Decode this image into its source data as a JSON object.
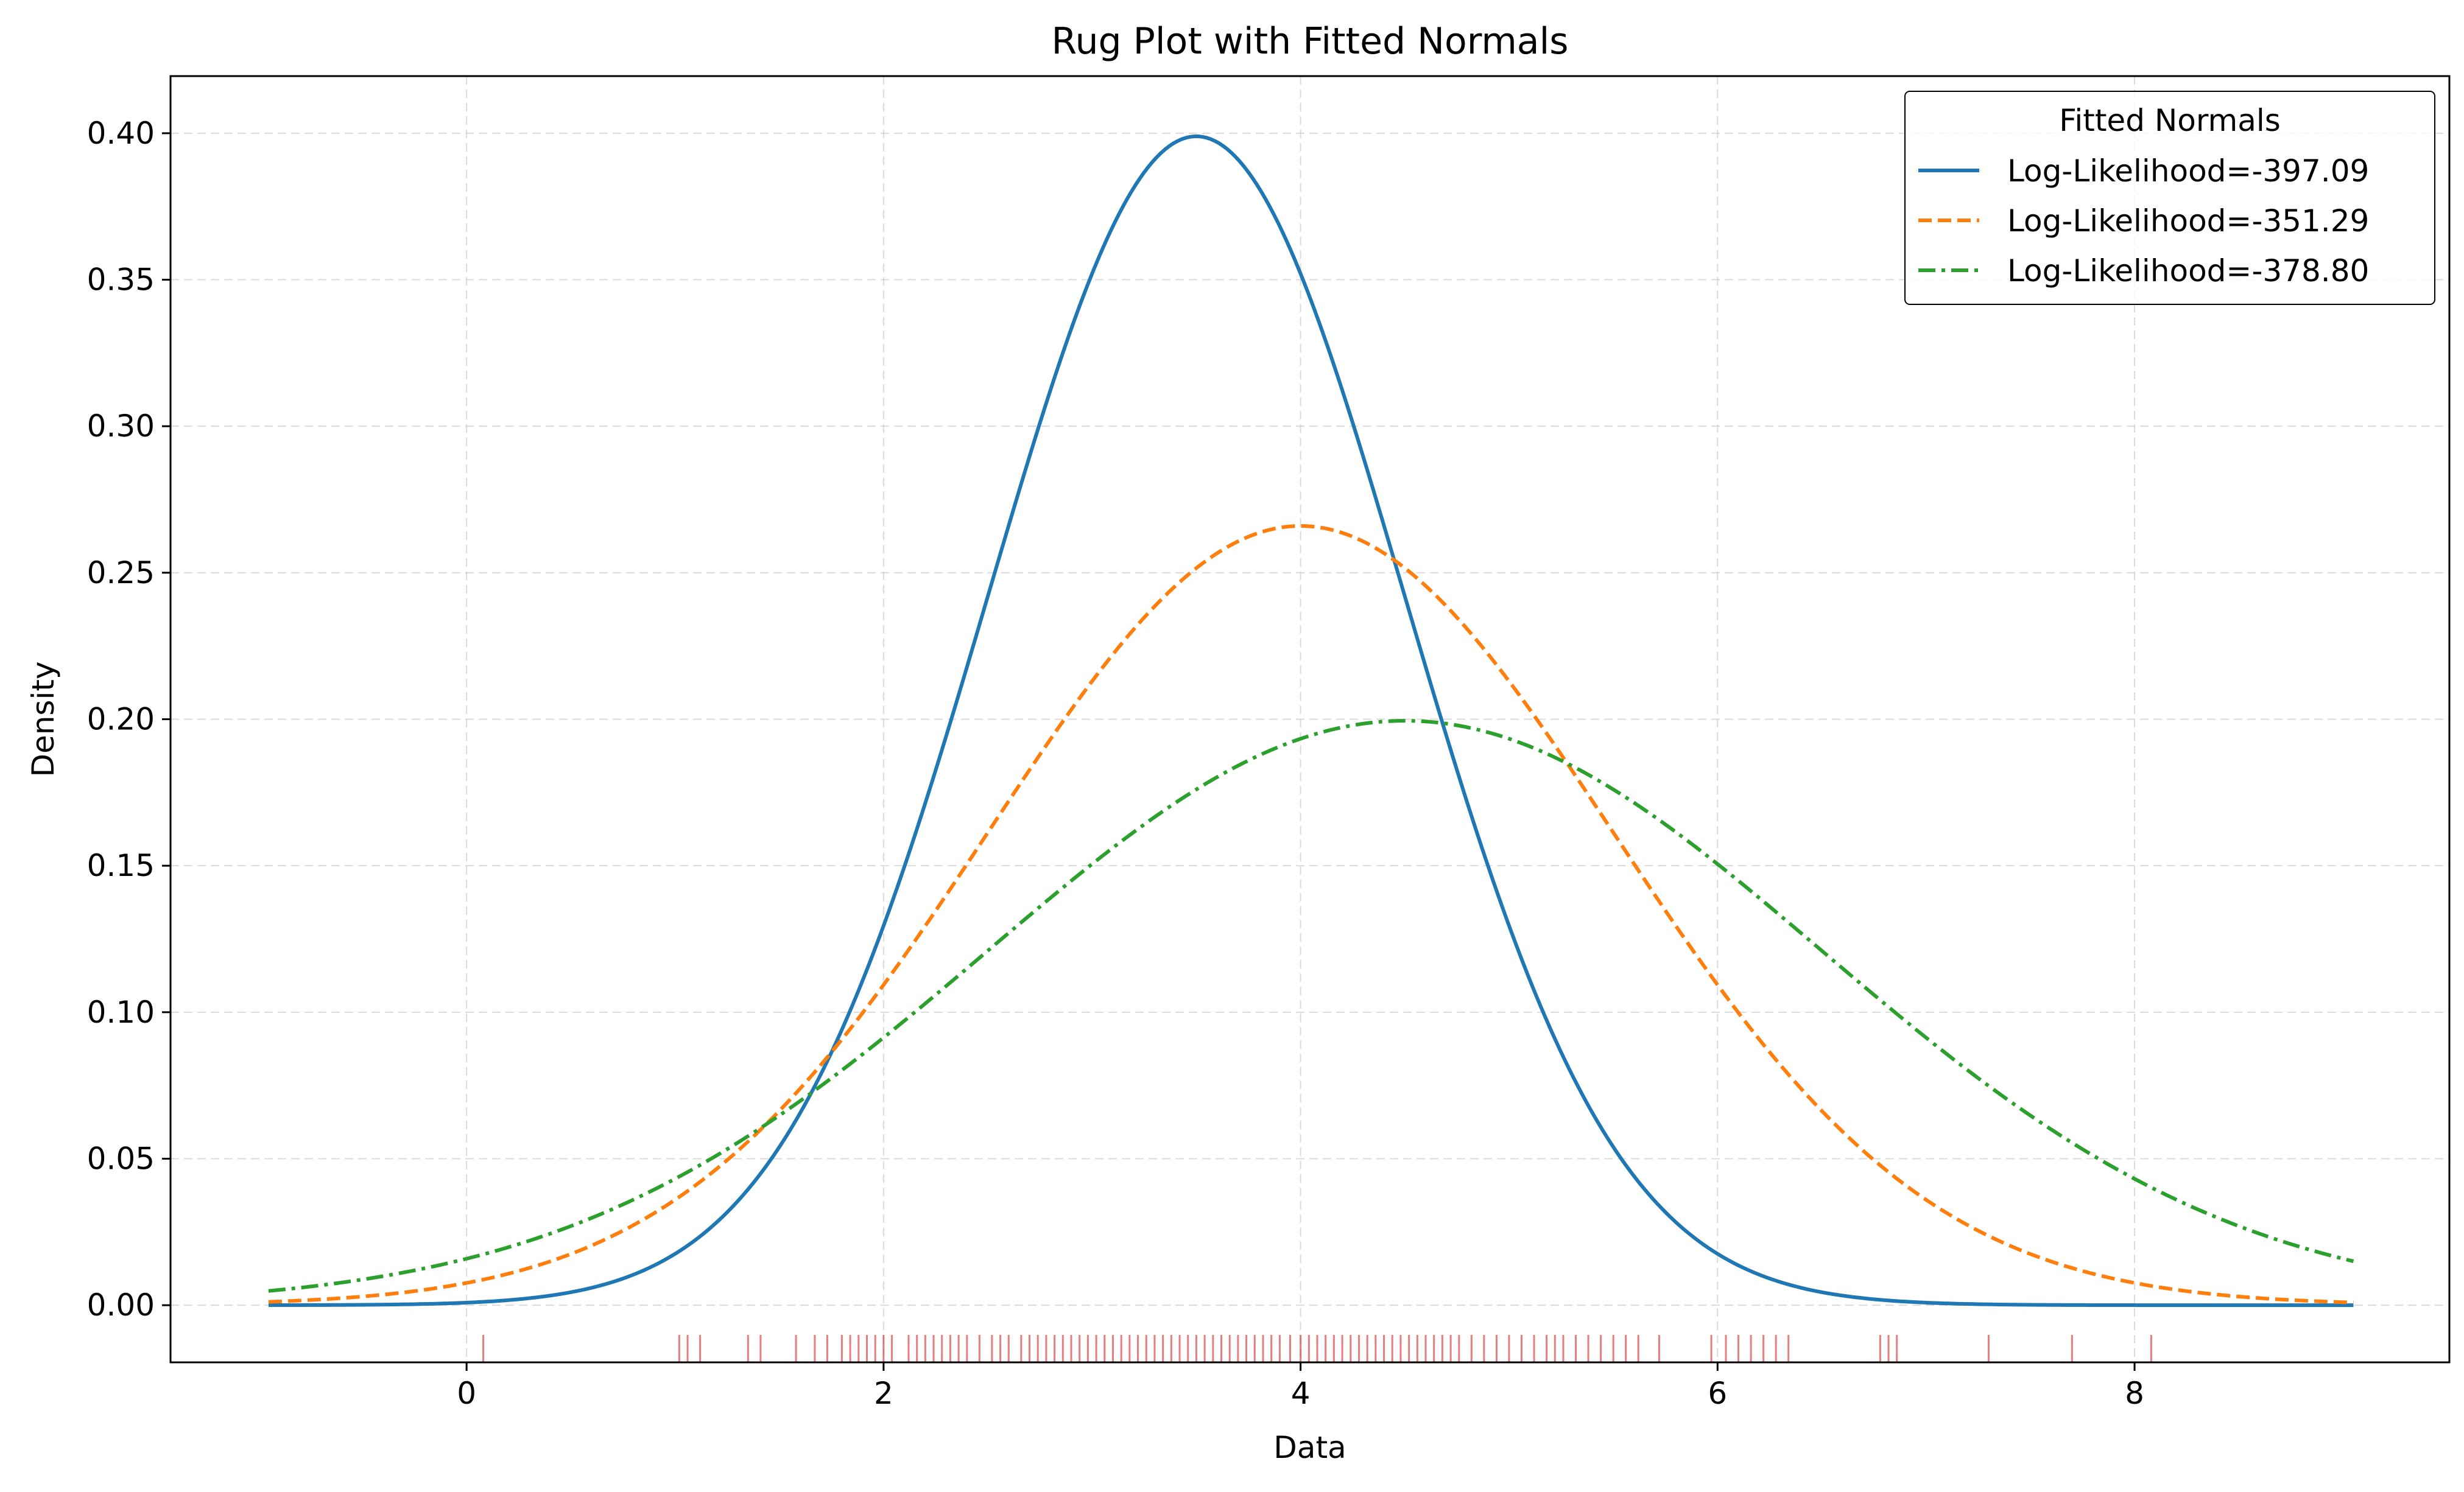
{
  "chart_data": {
    "type": "line",
    "title": "Rug Plot with Fitted Normals",
    "xlabel": "Data",
    "ylabel": "Density",
    "xlim": [
      -1.42,
      9.51
    ],
    "ylim": [
      -0.0195,
      0.4195
    ],
    "x_ticks": [
      0,
      2,
      4,
      6,
      8
    ],
    "y_ticks": [
      0.0,
      0.05,
      0.1,
      0.15,
      0.2,
      0.25,
      0.3,
      0.35,
      0.4
    ],
    "x_tick_labels": [
      "0",
      "2",
      "4",
      "6",
      "8"
    ],
    "y_tick_labels": [
      "0.00",
      "0.05",
      "0.10",
      "0.15",
      "0.20",
      "0.25",
      "0.30",
      "0.35",
      "0.40"
    ],
    "grid": true,
    "x_range_curves": [
      -0.95,
      9.05
    ],
    "legend": {
      "title": "Fitted Normals",
      "position": "top-right"
    },
    "series": [
      {
        "name": "Log-Likelihood=-397.09",
        "mu": 3.5,
        "sigma": 1.0,
        "color": "#1f77b4",
        "style": "solid"
      },
      {
        "name": "Log-Likelihood=-351.29",
        "mu": 4.0,
        "sigma": 1.5,
        "color": "#ff7f0e",
        "style": "dashed"
      },
      {
        "name": "Log-Likelihood=-378.80",
        "mu": 4.5,
        "sigma": 2.0,
        "color": "#2ca02c",
        "style": "dashdot"
      }
    ],
    "rug": {
      "color": "#d62728",
      "values": [
        0.08,
        1.02,
        1.06,
        1.12,
        1.35,
        1.41,
        1.58,
        1.67,
        1.73,
        1.8,
        1.84,
        1.88,
        1.92,
        1.96,
        2.0,
        2.04,
        2.12,
        2.16,
        2.2,
        2.24,
        2.28,
        2.32,
        2.36,
        2.4,
        2.46,
        2.52,
        2.56,
        2.6,
        2.66,
        2.7,
        2.74,
        2.78,
        2.82,
        2.86,
        2.9,
        2.94,
        2.98,
        3.02,
        3.06,
        3.1,
        3.14,
        3.18,
        3.22,
        3.26,
        3.3,
        3.34,
        3.38,
        3.42,
        3.46,
        3.5,
        3.54,
        3.58,
        3.62,
        3.66,
        3.7,
        3.74,
        3.78,
        3.82,
        3.86,
        3.9,
        3.95,
        4.0,
        4.04,
        4.08,
        4.12,
        4.16,
        4.2,
        4.24,
        4.28,
        4.32,
        4.36,
        4.4,
        4.44,
        4.48,
        4.52,
        4.56,
        4.6,
        4.64,
        4.68,
        4.72,
        4.76,
        4.82,
        4.88,
        4.94,
        5.0,
        5.06,
        5.12,
        5.18,
        5.22,
        5.26,
        5.32,
        5.38,
        5.44,
        5.5,
        5.56,
        5.62,
        5.72,
        5.97,
        6.04,
        6.1,
        6.16,
        6.22,
        6.28,
        6.34,
        6.78,
        6.82,
        6.86,
        7.3,
        7.7,
        8.08
      ]
    }
  }
}
